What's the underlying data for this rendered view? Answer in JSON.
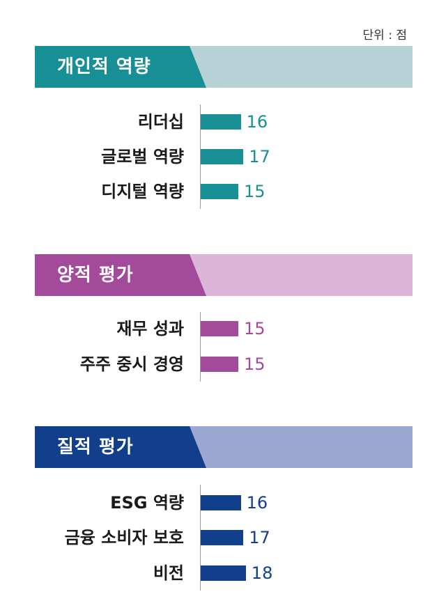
{
  "unit_label": "단위 : 점",
  "colors": {
    "sec1_dark": "#178f95",
    "sec1_light": "#b7d2d6",
    "sec2_dark": "#a44a9a",
    "sec2_light": "#dcb6d8",
    "sec3_dark": "#123f8c",
    "sec3_light": "#9aa8d2"
  },
  "chart_data": {
    "type": "bar",
    "unit": "점",
    "groups": [
      {
        "title": "개인적 역량",
        "categories": [
          "리더십",
          "글로벌 역량",
          "디지털 역량"
        ],
        "values": [
          16,
          17,
          15
        ],
        "color": "#178f95"
      },
      {
        "title": "양적 평가",
        "categories": [
          "재무 성과",
          "주주 중시 경영"
        ],
        "values": [
          15,
          15
        ],
        "color": "#a44a9a"
      },
      {
        "title": "질적 평가",
        "categories": [
          "ESG 역량",
          "금융 소비자 보호",
          "비전"
        ],
        "values": [
          16,
          17,
          18
        ],
        "color": "#123f8c"
      }
    ]
  }
}
